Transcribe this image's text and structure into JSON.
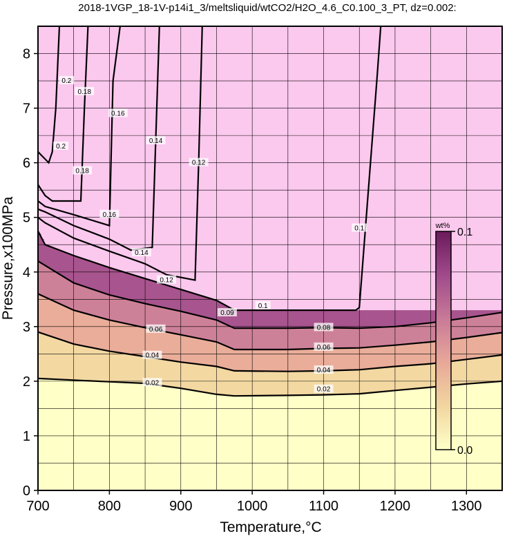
{
  "chart_data": {
    "type": "heatmap",
    "title": "2018-1VGP_18-1V-p14i1_3/meltsliquid/wtCO2/H2O_4.6_C0.100_3_PT, dz=0.002:",
    "xlabel": "Temperature,°C",
    "ylabel": "Pressure,x100MPa",
    "xlim": [
      700,
      1350
    ],
    "ylim": [
      0,
      8.5
    ],
    "x_ticks": [
      "700",
      "800",
      "900",
      "1000",
      "1100",
      "1200",
      "1300"
    ],
    "y_ticks": [
      "0",
      "1",
      "2",
      "3",
      "4",
      "5",
      "6",
      "7",
      "8"
    ],
    "grid": true,
    "colorbar": {
      "title": "wt%",
      "min_label": "0.0",
      "max_label": "0.1",
      "range": [
        0.0,
        0.1
      ],
      "placement": "right-inside",
      "colors": [
        "#ffffc8",
        "#f2d6a0",
        "#e8a898",
        "#c87a98",
        "#a04a8c",
        "#6a1a5a"
      ]
    },
    "saturated_color": "#fbc8ee",
    "series": [
      {
        "name": "0.02",
        "x": [
          700,
          750,
          800,
          850,
          900,
          950,
          975,
          1050,
          1100,
          1150,
          1200,
          1250,
          1300,
          1350
        ],
        "y": [
          2.05,
          2.02,
          1.99,
          1.96,
          1.87,
          1.76,
          1.73,
          1.74,
          1.75,
          1.77,
          1.83,
          1.89,
          1.95,
          2.0
        ]
      },
      {
        "name": "0.04",
        "x": [
          700,
          750,
          800,
          850,
          900,
          950,
          975,
          1050,
          1100,
          1150,
          1200,
          1250,
          1300,
          1350
        ],
        "y": [
          2.9,
          2.68,
          2.55,
          2.45,
          2.35,
          2.27,
          2.19,
          2.18,
          2.19,
          2.21,
          2.27,
          2.32,
          2.4,
          2.48
        ]
      },
      {
        "name": "0.06",
        "x": [
          700,
          750,
          800,
          850,
          900,
          950,
          975,
          1050,
          1100,
          1150,
          1200,
          1250,
          1300,
          1350
        ],
        "y": [
          3.6,
          3.3,
          3.12,
          2.98,
          2.85,
          2.72,
          2.58,
          2.58,
          2.6,
          2.61,
          2.66,
          2.72,
          2.8,
          2.89
        ]
      },
      {
        "name": "0.08",
        "x": [
          700,
          750,
          800,
          850,
          900,
          950,
          975,
          1050,
          1100,
          1150,
          1200,
          1250,
          1300,
          1350
        ],
        "y": [
          4.2,
          3.8,
          3.58,
          3.42,
          3.28,
          3.12,
          2.97,
          2.97,
          2.98,
          2.97,
          3.0,
          3.07,
          3.16,
          3.26
        ]
      },
      {
        "name": "0.1",
        "x": [
          700,
          710,
          750,
          800,
          850,
          900,
          950,
          975,
          1050,
          1100,
          1145,
          1150,
          1175,
          1180
        ],
        "y": [
          4.75,
          4.5,
          4.3,
          4.08,
          3.88,
          3.68,
          3.48,
          3.3,
          3.3,
          3.3,
          3.3,
          3.35,
          7.6,
          8.5
        ]
      },
      {
        "name": "0.12",
        "x": [
          700,
          710,
          750,
          800,
          850,
          880,
          920,
          925,
          930
        ],
        "y": [
          5.0,
          4.9,
          4.62,
          4.38,
          4.15,
          3.95,
          3.85,
          6.0,
          8.5
        ]
      },
      {
        "name": "0.14",
        "x": [
          700,
          710,
          750,
          800,
          830,
          860,
          870
        ],
        "y": [
          5.15,
          5.1,
          4.85,
          4.6,
          4.4,
          4.45,
          8.5
        ]
      },
      {
        "name": "0.16",
        "x": [
          700,
          710,
          750,
          800,
          805,
          815
        ],
        "y": [
          5.3,
          5.2,
          5.05,
          4.85,
          7.5,
          8.5
        ]
      },
      {
        "name": "0.18",
        "x": [
          700,
          710,
          720,
          760,
          765,
          770
        ],
        "y": [
          5.6,
          5.4,
          5.3,
          5.3,
          7.0,
          8.5
        ]
      },
      {
        "name": "0.2",
        "x": [
          700,
          715,
          720,
          725,
          730
        ],
        "y": [
          6.2,
          6.0,
          6.2,
          7.0,
          8.5
        ]
      }
    ],
    "contour_labels": [
      {
        "text": "0.02",
        "x": 1100,
        "y": 1.85
      },
      {
        "text": "0.02",
        "x": 860,
        "y": 1.97
      },
      {
        "text": "0.04",
        "x": 1100,
        "y": 2.2
      },
      {
        "text": "0.04",
        "x": 860,
        "y": 2.47
      },
      {
        "text": "0.06",
        "x": 1100,
        "y": 2.62
      },
      {
        "text": "0.06",
        "x": 865,
        "y": 2.95
      },
      {
        "text": "0.08",
        "x": 1100,
        "y": 2.98
      },
      {
        "text": "0.09",
        "x": 965,
        "y": 3.25
      },
      {
        "text": "0.1",
        "x": 1015,
        "y": 3.38
      },
      {
        "text": "0.1",
        "x": 1150,
        "y": 4.8
      },
      {
        "text": "0.12",
        "x": 880,
        "y": 3.85
      },
      {
        "text": "0.12",
        "x": 925,
        "y": 6.0
      },
      {
        "text": "0.14",
        "x": 845,
        "y": 4.35
      },
      {
        "text": "0.14",
        "x": 865,
        "y": 6.4
      },
      {
        "text": "0.16",
        "x": 800,
        "y": 5.05
      },
      {
        "text": "0.16",
        "x": 812,
        "y": 6.9
      },
      {
        "text": "0.18",
        "x": 762,
        "y": 5.85
      },
      {
        "text": "0.18",
        "x": 765,
        "y": 7.3
      },
      {
        "text": "0.2",
        "x": 732,
        "y": 6.3
      },
      {
        "text": "0.2",
        "x": 740,
        "y": 7.5
      }
    ]
  }
}
